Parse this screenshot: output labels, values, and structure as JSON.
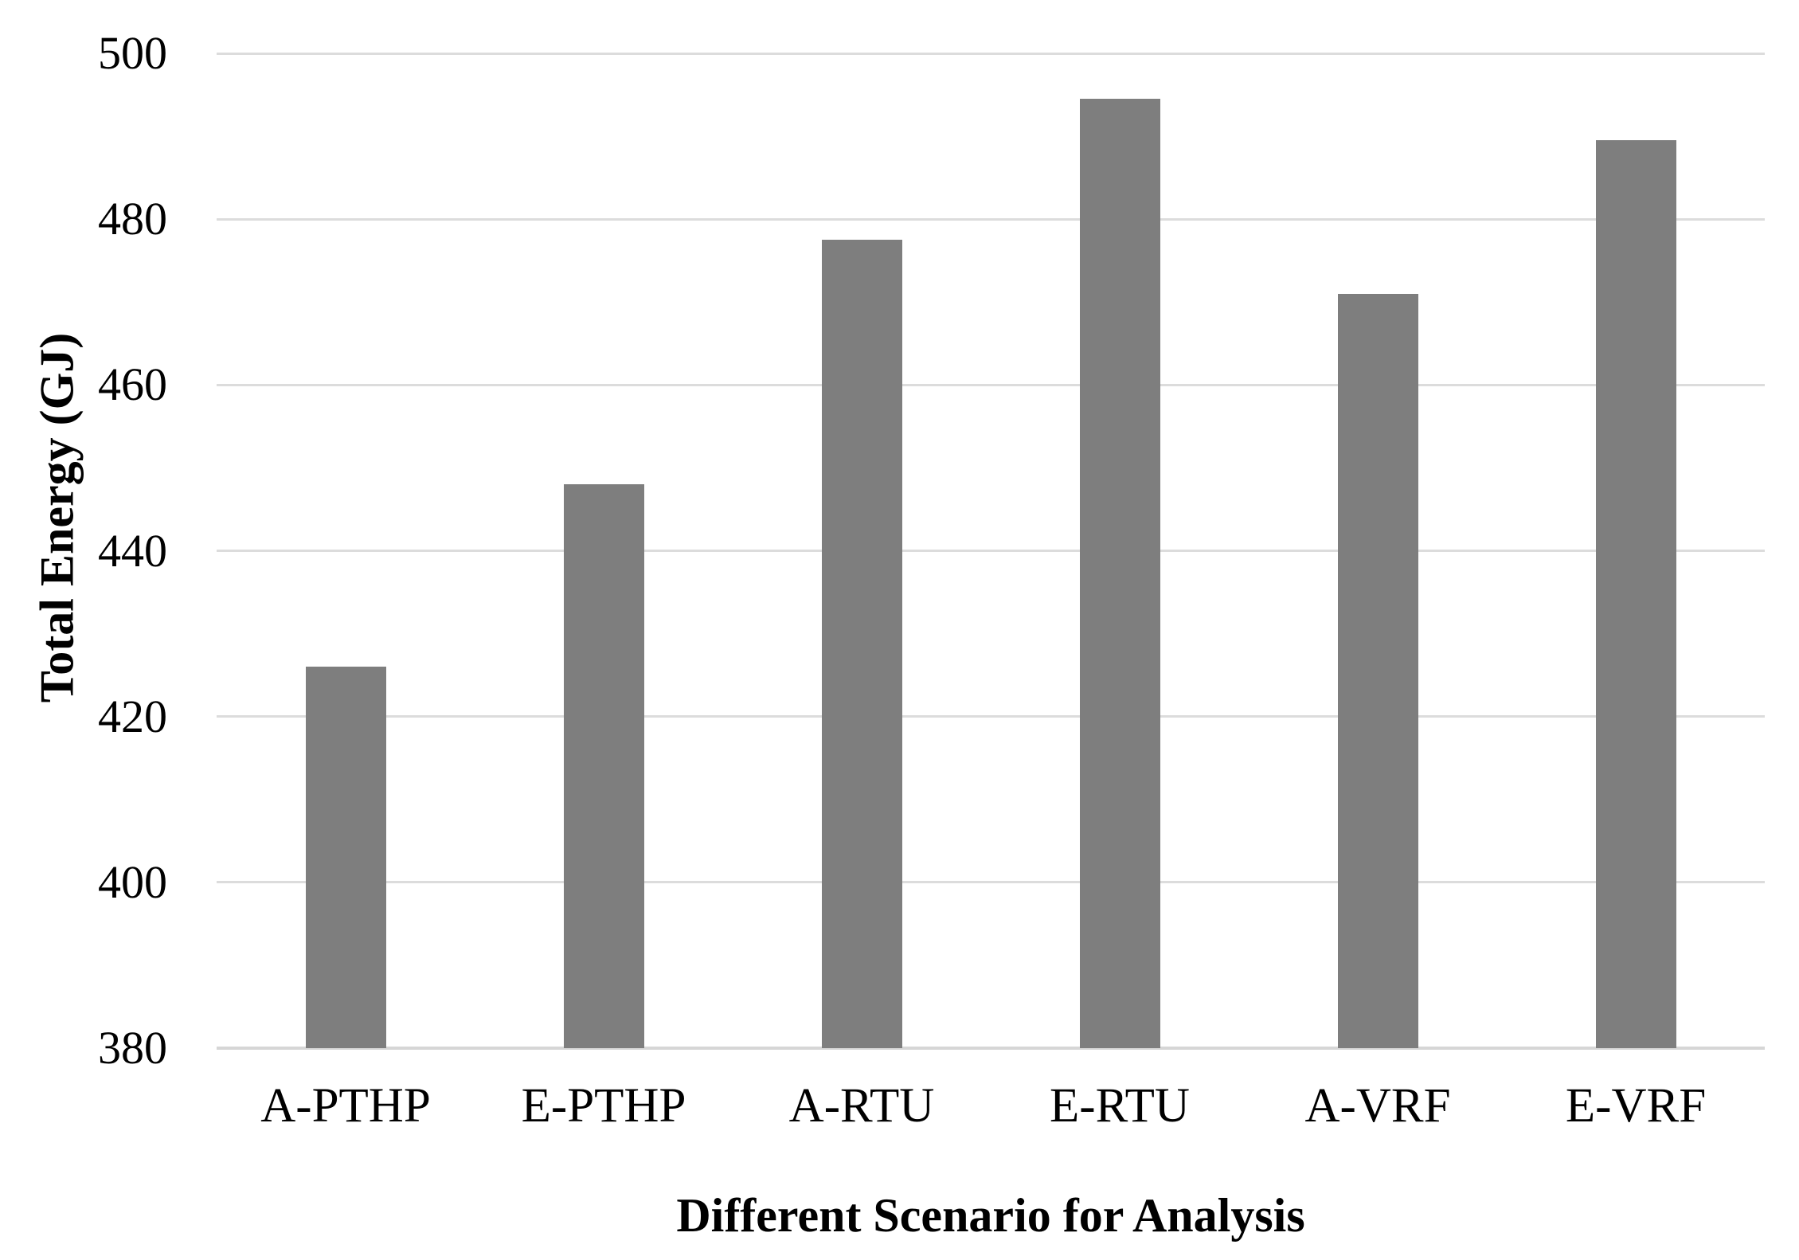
{
  "chart_data": {
    "type": "bar",
    "title": "",
    "categories": [
      "A-PTHP",
      "E-PTHP",
      "A-RTU",
      "E-RTU",
      "A-VRF",
      "E-VRF"
    ],
    "values": [
      426,
      448,
      477.5,
      494.5,
      471,
      489.5
    ],
    "xlabel": "Different Scenario for Analysis",
    "ylabel": "Total Energy (GJ)",
    "ylim": [
      380,
      500
    ],
    "yticks": [
      380,
      400,
      420,
      440,
      460,
      480,
      500
    ],
    "grid": true,
    "legend": "none",
    "colors": {
      "bar_fill": "#7e7e7e",
      "gridline": "#dcdcdc",
      "axis_line": "#d6d6d6",
      "text": "#000000",
      "background": "#ffffff"
    }
  }
}
